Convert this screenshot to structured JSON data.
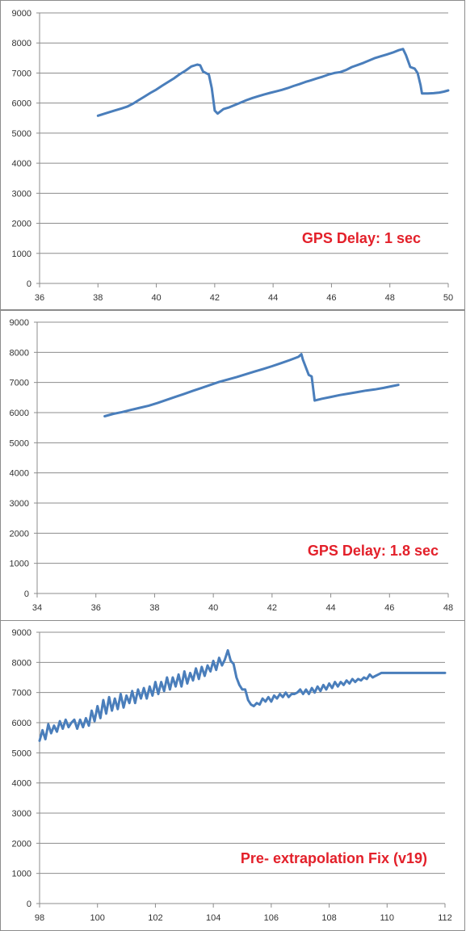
{
  "chart_data": [
    {
      "type": "line",
      "annotation": "GPS Delay: 1 sec",
      "annotation_color": "#e3202a",
      "line_color": "#4a7ebb",
      "grid": true,
      "xlim": [
        36,
        50
      ],
      "ylim": [
        0,
        9000
      ],
      "xticks": [
        "36",
        "38",
        "40",
        "42",
        "44",
        "46",
        "48",
        "50"
      ],
      "yticks": [
        "0",
        "1000",
        "2000",
        "3000",
        "4000",
        "5000",
        "6000",
        "7000",
        "8000",
        "9000"
      ],
      "x": [
        38.0,
        38.2,
        38.4,
        38.6,
        38.8,
        39.0,
        39.2,
        39.4,
        39.6,
        39.8,
        40.0,
        40.2,
        40.4,
        40.6,
        40.8,
        41.0,
        41.2,
        41.4,
        41.5,
        41.6,
        41.8,
        41.9,
        42.0,
        42.1,
        42.3,
        42.5,
        42.7,
        42.9,
        43.1,
        43.3,
        43.5,
        43.7,
        43.9,
        44.1,
        44.3,
        44.5,
        44.7,
        44.9,
        45.1,
        45.3,
        45.5,
        45.7,
        45.9,
        46.1,
        46.3,
        46.5,
        46.7,
        46.9,
        47.1,
        47.3,
        47.5,
        47.7,
        47.9,
        48.1,
        48.3,
        48.45,
        48.55,
        48.7,
        48.85,
        48.95,
        49.05,
        49.1,
        49.3,
        49.5,
        49.7,
        49.85,
        50.0
      ],
      "y": [
        5580,
        5640,
        5700,
        5760,
        5820,
        5880,
        5980,
        6100,
        6220,
        6340,
        6450,
        6580,
        6700,
        6820,
        6960,
        7080,
        7220,
        7280,
        7260,
        7050,
        6950,
        6500,
        5750,
        5650,
        5800,
        5860,
        5940,
        6020,
        6100,
        6170,
        6230,
        6290,
        6340,
        6390,
        6440,
        6500,
        6570,
        6630,
        6700,
        6760,
        6820,
        6880,
        6950,
        7000,
        7030,
        7100,
        7200,
        7270,
        7340,
        7420,
        7500,
        7560,
        7620,
        7680,
        7760,
        7800,
        7600,
        7200,
        7150,
        7000,
        6600,
        6320,
        6320,
        6330,
        6350,
        6380,
        6420
      ]
    },
    {
      "type": "line",
      "annotation": "GPS Delay: 1.8 sec",
      "annotation_color": "#e3202a",
      "line_color": "#4a7ebb",
      "grid": true,
      "xlim": [
        34,
        48
      ],
      "ylim": [
        0,
        9000
      ],
      "xticks": [
        "34",
        "36",
        "38",
        "40",
        "42",
        "44",
        "46",
        "48"
      ],
      "yticks": [
        "0",
        "1000",
        "2000",
        "3000",
        "4000",
        "5000",
        "6000",
        "7000",
        "8000",
        "9000"
      ],
      "x": [
        36.3,
        36.6,
        36.9,
        37.2,
        37.5,
        37.8,
        38.1,
        38.4,
        38.7,
        39.0,
        39.3,
        39.6,
        39.9,
        40.2,
        40.5,
        40.8,
        41.1,
        41.4,
        41.7,
        42.0,
        42.3,
        42.6,
        42.9,
        43.0,
        43.05,
        43.25,
        43.35,
        43.45,
        43.7,
        44.0,
        44.3,
        44.6,
        44.9,
        45.2,
        45.5,
        45.8,
        46.1,
        46.3
      ],
      "y": [
        5880,
        5960,
        6020,
        6090,
        6160,
        6230,
        6320,
        6420,
        6520,
        6620,
        6720,
        6820,
        6920,
        7020,
        7100,
        7180,
        7270,
        7360,
        7450,
        7540,
        7640,
        7740,
        7850,
        7940,
        7760,
        7250,
        7200,
        6400,
        6460,
        6520,
        6580,
        6630,
        6680,
        6730,
        6770,
        6820,
        6880,
        6920
      ]
    },
    {
      "type": "line",
      "annotation": "Pre- extrapolation Fix (v19)",
      "annotation_color": "#e3202a",
      "line_color": "#4a7ebb",
      "grid": true,
      "xlim": [
        98,
        112
      ],
      "ylim": [
        0,
        9000
      ],
      "xticks": [
        "98",
        "100",
        "102",
        "104",
        "106",
        "108",
        "110",
        "112"
      ],
      "yticks": [
        "0",
        "1000",
        "2000",
        "3000",
        "4000",
        "5000",
        "6000",
        "7000",
        "8000",
        "9000"
      ],
      "x": [
        98.0,
        98.1,
        98.2,
        98.3,
        98.4,
        98.5,
        98.6,
        98.7,
        98.8,
        98.9,
        99.0,
        99.1,
        99.2,
        99.3,
        99.4,
        99.5,
        99.6,
        99.7,
        99.8,
        99.9,
        100.0,
        100.1,
        100.2,
        100.3,
        100.4,
        100.5,
        100.6,
        100.7,
        100.8,
        100.9,
        101.0,
        101.1,
        101.2,
        101.3,
        101.4,
        101.5,
        101.6,
        101.7,
        101.8,
        101.9,
        102.0,
        102.1,
        102.2,
        102.3,
        102.4,
        102.5,
        102.6,
        102.7,
        102.8,
        102.9,
        103.0,
        103.1,
        103.2,
        103.3,
        103.4,
        103.5,
        103.6,
        103.7,
        103.8,
        103.9,
        104.0,
        104.1,
        104.2,
        104.3,
        104.4,
        104.5,
        104.6,
        104.7,
        104.8,
        104.9,
        105.0,
        105.1,
        105.2,
        105.3,
        105.4,
        105.5,
        105.6,
        105.7,
        105.8,
        105.9,
        106.0,
        106.1,
        106.2,
        106.3,
        106.4,
        106.5,
        106.6,
        106.7,
        106.8,
        106.9,
        107.0,
        107.1,
        107.2,
        107.3,
        107.4,
        107.5,
        107.6,
        107.7,
        107.8,
        107.9,
        108.0,
        108.1,
        108.2,
        108.3,
        108.4,
        108.5,
        108.6,
        108.7,
        108.8,
        108.9,
        109.0,
        109.1,
        109.2,
        109.3,
        109.4,
        109.5,
        109.6,
        109.7,
        109.8,
        109.9,
        110.0,
        110.1,
        110.2,
        110.3,
        110.4,
        110.5,
        110.6,
        110.7,
        110.8,
        110.9,
        111.0,
        111.1,
        111.2,
        111.3,
        111.4,
        111.5,
        111.6,
        111.7,
        111.8,
        111.9,
        112.0
      ],
      "y": [
        5400,
        5750,
        5450,
        5950,
        5650,
        5900,
        5700,
        6050,
        5800,
        6100,
        5850,
        6000,
        6100,
        5800,
        6100,
        5850,
        6150,
        5900,
        6400,
        6050,
        6550,
        6150,
        6750,
        6300,
        6850,
        6400,
        6800,
        6450,
        6950,
        6500,
        6900,
        6650,
        7050,
        6650,
        7100,
        6800,
        7150,
        6800,
        7200,
        6900,
        7350,
        6950,
        7350,
        7050,
        7500,
        7100,
        7500,
        7200,
        7600,
        7200,
        7700,
        7300,
        7650,
        7400,
        7800,
        7450,
        7850,
        7550,
        7900,
        7700,
        8050,
        7750,
        8150,
        7900,
        8100,
        8400,
        8050,
        7950,
        7500,
        7250,
        7100,
        7100,
        6750,
        6600,
        6550,
        6650,
        6600,
        6800,
        6700,
        6850,
        6700,
        6900,
        6800,
        6950,
        6850,
        7000,
        6850,
        6950,
        6950,
        7000,
        7100,
        6950,
        7100,
        6950,
        7150,
        7000,
        7200,
        7050,
        7250,
        7100,
        7300,
        7150,
        7350,
        7200,
        7350,
        7250,
        7400,
        7300,
        7450,
        7350,
        7450,
        7400,
        7500,
        7450,
        7600,
        7500,
        7550,
        7600,
        7650,
        7650,
        7650,
        7650,
        7650,
        7650,
        7650,
        7650,
        7650,
        7650,
        7650,
        7650,
        7650,
        7650,
        7650,
        7650,
        7650,
        7650,
        7650,
        7650,
        7650,
        7650,
        7650
      ]
    }
  ]
}
